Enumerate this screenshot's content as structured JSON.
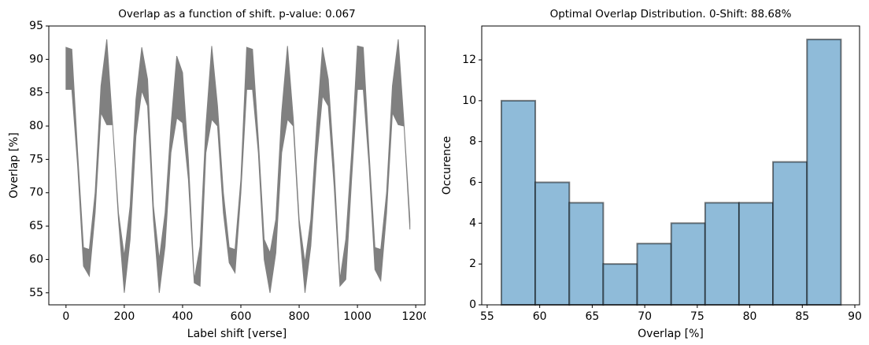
{
  "chart_data": [
    {
      "type": "fill_between",
      "title": "Overlap as a function of shift. p-value: 0.067",
      "xlabel": "Label shift [verse]",
      "ylabel": "Overlap [%]",
      "color": "#808080",
      "x": [
        0,
        20,
        40,
        60,
        80,
        100,
        120,
        140,
        160,
        180,
        200,
        220,
        240,
        260,
        280,
        300,
        320,
        340,
        360,
        380,
        400,
        420,
        440,
        460,
        480,
        500,
        520,
        540,
        560,
        580,
        600,
        620,
        640,
        660,
        680,
        700,
        720,
        740,
        760,
        780,
        800,
        820,
        840,
        860,
        880,
        900,
        920,
        940,
        960,
        980,
        1000,
        1020,
        1040,
        1060,
        1080,
        1100,
        1120,
        1140,
        1160,
        1180
      ],
      "y_upper": [
        91.8,
        91.5,
        76,
        61.8,
        61.5,
        70,
        86,
        93,
        80.2,
        67,
        60.5,
        68,
        84,
        91.8,
        87,
        68,
        60,
        67,
        80,
        90.5,
        88,
        75,
        57,
        62,
        80,
        92,
        83,
        70,
        61.8,
        61.5,
        72,
        91.8,
        91.5,
        78,
        63,
        61,
        66,
        82,
        92,
        81,
        66,
        59.5,
        66,
        80,
        91.8,
        87,
        74,
        57,
        63,
        76,
        92,
        91.8,
        76,
        61.8,
        61.5,
        70,
        86,
        93,
        80.2,
        66
      ],
      "y_lower": [
        85.5,
        85.5,
        74,
        59,
        57.5,
        67,
        82,
        80.2,
        80.2,
        66,
        55,
        63,
        78.5,
        85.3,
        83,
        66,
        55,
        62,
        76,
        81.2,
        80.5,
        72,
        56.5,
        56,
        76,
        81,
        80,
        67,
        59.5,
        58,
        70,
        85.5,
        85.5,
        76,
        60,
        55,
        61,
        76,
        81,
        80,
        65,
        55,
        62,
        75,
        84.5,
        83,
        71,
        56,
        57,
        72,
        85.5,
        85.5,
        74,
        58.5,
        56.8,
        67,
        82,
        80.2,
        80,
        64.5
      ],
      "xlim": [
        -59,
        1232
      ],
      "ylim": [
        53.2,
        95
      ],
      "xticks": [
        0,
        200,
        400,
        600,
        800,
        1000,
        1200
      ],
      "yticks": [
        55,
        60,
        65,
        70,
        75,
        80,
        85,
        90,
        95
      ]
    },
    {
      "type": "histogram",
      "title": "Optimal Overlap Distribution. 0-Shift: 88.68%",
      "xlabel": "Overlap [%]",
      "ylabel": "Occurence",
      "color": "#8fbbd9",
      "bins": [
        56.35,
        59.58,
        62.82,
        66.05,
        69.28,
        72.52,
        75.75,
        78.98,
        82.21,
        85.45,
        88.68
      ],
      "values": [
        10,
        6,
        5,
        2,
        3,
        4,
        5,
        5,
        7,
        13
      ],
      "xlim": [
        54.48,
        90.45
      ],
      "ylim": [
        0,
        13.66
      ],
      "xticks": [
        55,
        60,
        65,
        70,
        75,
        80,
        85,
        90
      ],
      "yticks": [
        0,
        2,
        4,
        6,
        8,
        10,
        12
      ]
    }
  ]
}
